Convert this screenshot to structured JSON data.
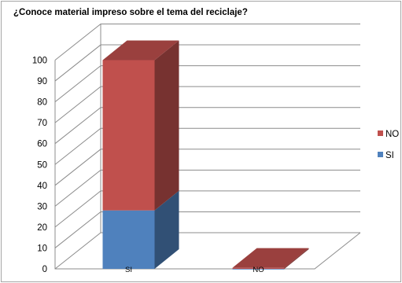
{
  "chart_data": {
    "type": "bar",
    "stacked": true,
    "three_d": true,
    "title": "¿Conoce material impreso sobre el tema del reciclaje?",
    "categories": [
      "SI",
      "NO"
    ],
    "series": [
      {
        "name": "SI",
        "values": [
          28,
          0
        ],
        "color": "#4f81bd"
      },
      {
        "name": "NO",
        "values": [
          72,
          0.5
        ],
        "color": "#c0504d"
      }
    ],
    "yticks": [
      0,
      10,
      20,
      30,
      40,
      50,
      60,
      70,
      80,
      90,
      100
    ],
    "ylim": [
      0,
      100
    ],
    "grid": true,
    "legend": "right"
  }
}
